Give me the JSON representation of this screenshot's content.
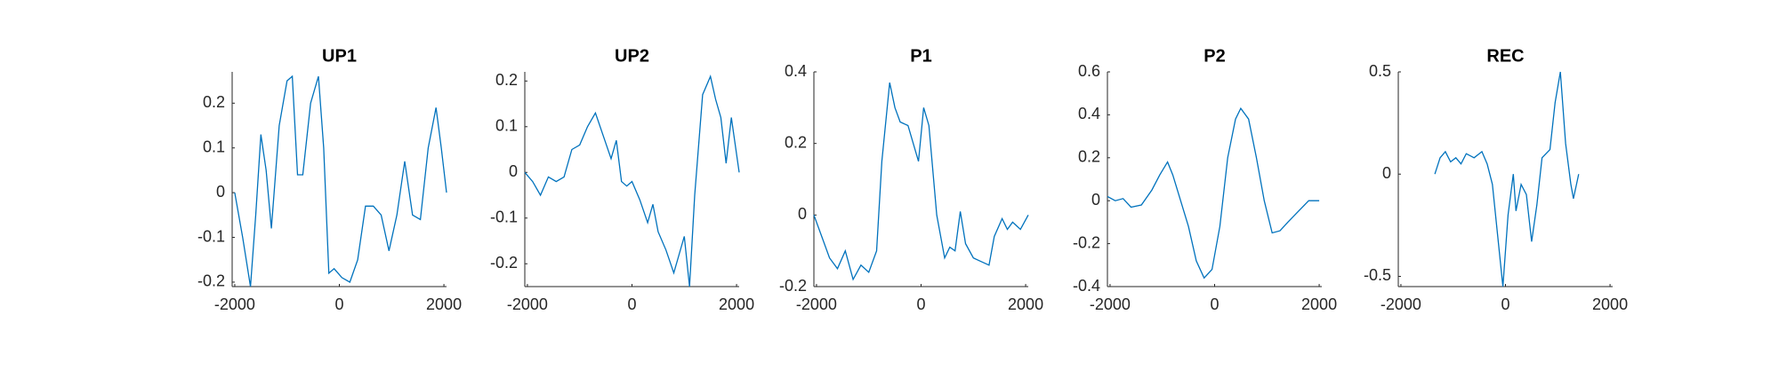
{
  "chart_data": [
    {
      "type": "line",
      "title": "UP1",
      "color": "#0072bd",
      "xlim": [
        -2050,
        2050
      ],
      "xticks": [
        -2000,
        0,
        2000
      ],
      "ylim": [
        -0.21,
        0.27
      ],
      "yticks": [
        -0.2,
        -0.1,
        0,
        0.1,
        0.2
      ],
      "x": [
        -2000,
        -1850,
        -1700,
        -1600,
        -1500,
        -1400,
        -1300,
        -1150,
        -1000,
        -900,
        -800,
        -700,
        -550,
        -400,
        -300,
        -200,
        -100,
        50,
        200,
        350,
        500,
        650,
        800,
        950,
        1100,
        1250,
        1400,
        1550,
        1700,
        1850,
        1950,
        2050
      ],
      "values": [
        0,
        -0.1,
        -0.21,
        -0.05,
        0.13,
        0.05,
        -0.08,
        0.15,
        0.25,
        0.26,
        0.04,
        0.04,
        0.2,
        0.26,
        0.1,
        -0.18,
        -0.17,
        -0.19,
        -0.2,
        -0.15,
        -0.03,
        -0.03,
        -0.05,
        -0.13,
        -0.05,
        0.07,
        -0.05,
        -0.06,
        0.1,
        0.19,
        0.1,
        0
      ]
    },
    {
      "type": "line",
      "title": "UP2",
      "color": "#0072bd",
      "xlim": [
        -2050,
        2050
      ],
      "xticks": [
        -2000,
        0,
        2000
      ],
      "ylim": [
        -0.25,
        0.22
      ],
      "yticks": [
        -0.2,
        -0.1,
        0,
        0.1,
        0.2
      ],
      "x": [
        -2050,
        -1900,
        -1750,
        -1600,
        -1450,
        -1300,
        -1150,
        -1000,
        -850,
        -700,
        -550,
        -400,
        -300,
        -200,
        -100,
        0,
        150,
        300,
        400,
        500,
        650,
        800,
        900,
        1000,
        1100,
        1200,
        1350,
        1500,
        1600,
        1700,
        1800,
        1900,
        2050
      ],
      "values": [
        0,
        -0.02,
        -0.05,
        -0.01,
        -0.02,
        -0.01,
        0.05,
        0.06,
        0.1,
        0.13,
        0.08,
        0.03,
        0.07,
        -0.02,
        -0.03,
        -0.02,
        -0.06,
        -0.11,
        -0.07,
        -0.13,
        -0.17,
        -0.22,
        -0.18,
        -0.14,
        -0.25,
        -0.05,
        0.17,
        0.21,
        0.16,
        0.12,
        0.02,
        0.12,
        0
      ]
    },
    {
      "type": "line",
      "title": "P1",
      "color": "#0072bd",
      "xlim": [
        -2050,
        2050
      ],
      "xticks": [
        -2000,
        0,
        2000
      ],
      "ylim": [
        -0.2,
        0.4
      ],
      "yticks": [
        -0.2,
        0,
        0.2,
        0.4
      ],
      "x": [
        -2050,
        -1900,
        -1750,
        -1600,
        -1450,
        -1300,
        -1150,
        -1000,
        -850,
        -750,
        -600,
        -500,
        -400,
        -250,
        -150,
        -50,
        50,
        150,
        300,
        450,
        550,
        650,
        750,
        850,
        1000,
        1150,
        1300,
        1400,
        1550,
        1650,
        1750,
        1900,
        2050
      ],
      "values": [
        0,
        -0.06,
        -0.12,
        -0.15,
        -0.1,
        -0.18,
        -0.14,
        -0.16,
        -0.1,
        0.15,
        0.37,
        0.3,
        0.26,
        0.25,
        0.2,
        0.15,
        0.3,
        0.25,
        0,
        -0.12,
        -0.09,
        -0.1,
        0.01,
        -0.08,
        -0.12,
        -0.13,
        -0.14,
        -0.06,
        -0.01,
        -0.04,
        -0.02,
        -0.04,
        0
      ]
    },
    {
      "type": "line",
      "title": "P2",
      "color": "#0072bd",
      "xlim": [
        -2050,
        2050
      ],
      "xticks": [
        -2000,
        0,
        2000
      ],
      "ylim": [
        -0.4,
        0.6
      ],
      "yticks": [
        -0.4,
        -0.2,
        0,
        0.2,
        0.4,
        0.6
      ],
      "x": [
        -2050,
        -1900,
        -1750,
        -1600,
        -1400,
        -1200,
        -1050,
        -900,
        -800,
        -650,
        -500,
        -350,
        -200,
        -50,
        100,
        250,
        400,
        500,
        650,
        800,
        950,
        1100,
        1250,
        1400,
        1600,
        1800,
        2000
      ],
      "values": [
        0.02,
        0,
        0.01,
        -0.03,
        -0.02,
        0.05,
        0.12,
        0.18,
        0.12,
        0,
        -0.12,
        -0.28,
        -0.36,
        -0.32,
        -0.12,
        0.2,
        0.38,
        0.43,
        0.38,
        0.2,
        0,
        -0.15,
        -0.14,
        -0.1,
        -0.05,
        0,
        0
      ]
    },
    {
      "type": "line",
      "title": "REC",
      "color": "#0072bd",
      "xlim": [
        -2050,
        2050
      ],
      "xticks": [
        -2000,
        0,
        2000
      ],
      "ylim": [
        -0.55,
        0.5
      ],
      "yticks": [
        -0.5,
        0,
        0.5
      ],
      "x": [
        -1350,
        -1250,
        -1150,
        -1050,
        -950,
        -850,
        -750,
        -600,
        -450,
        -350,
        -250,
        -150,
        -50,
        50,
        150,
        200,
        300,
        400,
        500,
        600,
        700,
        850,
        950,
        1050,
        1150,
        1250,
        1300,
        1400
      ],
      "values": [
        0,
        0.08,
        0.11,
        0.06,
        0.08,
        0.05,
        0.1,
        0.08,
        0.11,
        0.05,
        -0.05,
        -0.3,
        -0.55,
        -0.2,
        0,
        -0.18,
        -0.05,
        -0.1,
        -0.33,
        -0.15,
        0.08,
        0.12,
        0.35,
        0.5,
        0.15,
        -0.05,
        -0.12,
        0
      ]
    }
  ]
}
